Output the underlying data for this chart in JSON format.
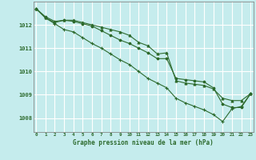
{
  "xlabel": "Graphe pression niveau de la mer (hPa)",
  "background_color": "#c5eced",
  "grid_color": "#b0d8d8",
  "line_color1": "#2d6a2d",
  "line_color2": "#2d6a2d",
  "line_color3": "#2d6a2d",
  "x_ticks": [
    0,
    1,
    2,
    3,
    4,
    5,
    6,
    7,
    8,
    9,
    10,
    11,
    12,
    13,
    14,
    15,
    16,
    17,
    18,
    19,
    20,
    21,
    22,
    23
  ],
  "y_ticks": [
    1008,
    1009,
    1010,
    1011,
    1012
  ],
  "ylim": [
    1007.4,
    1013.0
  ],
  "xlim": [
    -0.3,
    23.3
  ],
  "series1": [
    1012.7,
    1012.3,
    1012.1,
    1012.2,
    1012.2,
    1012.1,
    1012.0,
    1011.9,
    1011.8,
    1011.7,
    1011.55,
    1011.25,
    1011.1,
    1010.75,
    1010.8,
    1009.6,
    1009.5,
    1009.45,
    1009.4,
    1009.25,
    1008.85,
    1008.75,
    1008.75,
    1009.05
  ],
  "series2": [
    1012.7,
    1012.35,
    1012.15,
    1012.2,
    1012.15,
    1012.05,
    1011.95,
    1011.75,
    1011.55,
    1011.35,
    1011.2,
    1011.0,
    1010.8,
    1010.55,
    1010.55,
    1009.7,
    1009.65,
    1009.6,
    1009.55,
    1009.3,
    1008.6,
    1008.45,
    1008.45,
    1009.05
  ],
  "series3": [
    1012.7,
    1012.3,
    1012.05,
    1011.8,
    1011.7,
    1011.45,
    1011.2,
    1011.0,
    1010.75,
    1010.5,
    1010.3,
    1010.0,
    1009.7,
    1009.5,
    1009.3,
    1008.85,
    1008.65,
    1008.5,
    1008.35,
    1008.15,
    1007.85,
    1008.4,
    1008.5,
    1009.05
  ]
}
